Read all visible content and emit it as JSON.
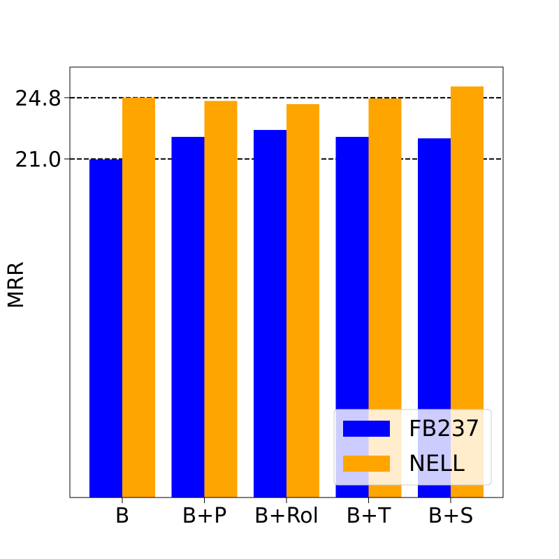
{
  "chart_data": {
    "type": "bar",
    "title": "",
    "xlabel": "",
    "ylabel": "MRR",
    "categories": [
      "B",
      "B+P",
      "B+Rol",
      "B+T",
      "B+S"
    ],
    "series": [
      {
        "name": "FB237",
        "color": "#0000ff",
        "values": [
          20.97,
          22.37,
          22.8,
          22.37,
          22.28
        ]
      },
      {
        "name": "NELL",
        "color": "#ffa500",
        "values": [
          24.8,
          24.6,
          24.4,
          24.75,
          25.5
        ]
      }
    ],
    "ylim": [
      0,
      26.7
    ],
    "yticks": [
      {
        "value": 21.0,
        "label": "21.0"
      },
      {
        "value": 24.8,
        "label": "24.8"
      }
    ],
    "reference_lines": [
      {
        "value": 21.0,
        "style": "dashed"
      },
      {
        "value": 24.8,
        "style": "dashed"
      }
    ],
    "grid": false,
    "legend_position": "bottom-right"
  }
}
